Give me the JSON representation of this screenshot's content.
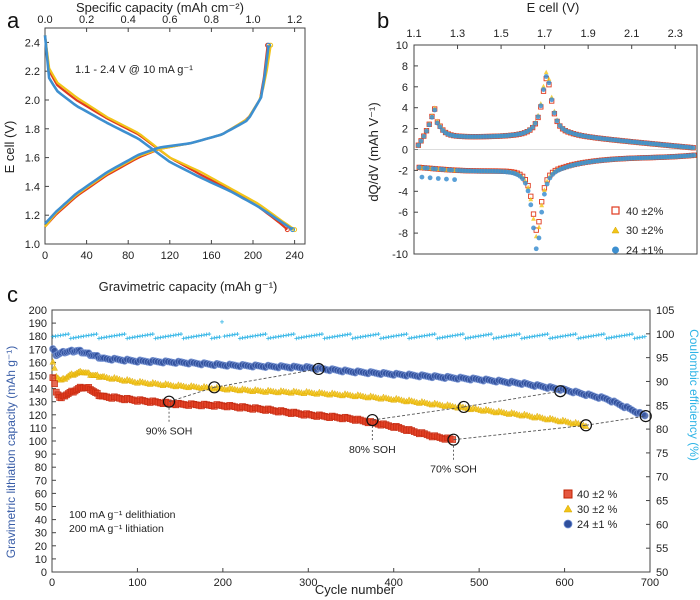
{
  "figure": {
    "panels": [
      {
        "letter": "a",
        "title_top": "Specific capacity (mAh cm⁻²)",
        "xlabel": "Gravimetric capacity (mAh g⁻¹)",
        "ylabel": "E cell (V)",
        "annotation": "1.1 - 2.4 V @ 10 mA g⁻¹"
      },
      {
        "letter": "b",
        "title_top": "E cell (V)",
        "ylabel": "dQ/dV (mAh V⁻¹)",
        "legend": [
          "40 ±2%",
          "30 ±2%",
          "24 ±1%"
        ]
      },
      {
        "letter": "c",
        "xlabel": "Cycle number",
        "ylabel_left": "Gravimetric lithiation capacity (mAh g⁻¹)",
        "ylabel_right": "Coulombic efficiency (%)",
        "notes": [
          "100 mA g⁻¹ delithiation",
          "200 mA g⁻¹ lithiation"
        ],
        "legend": [
          "40 ±2 %",
          "30 ±2 %",
          "24 ±1 %"
        ],
        "soh_labels": [
          "90% SOH",
          "80% SOH",
          "70% SOH"
        ]
      }
    ]
  },
  "chart_data": [
    {
      "type": "line",
      "panel": "a",
      "title": "",
      "xlabel": "Gravimetric capacity (mAh g⁻¹)",
      "ylabel": "E cell (V)",
      "x2label": "Specific capacity (mAh cm⁻²)",
      "xlim": [
        0,
        250
      ],
      "ylim": [
        1.0,
        2.5
      ],
      "x2lim": [
        0,
        1.25
      ],
      "xticks": [
        0,
        40,
        80,
        120,
        160,
        200,
        240
      ],
      "yticks": [
        1.0,
        1.2,
        1.4,
        1.6,
        1.8,
        2.0,
        2.2,
        2.4
      ],
      "x2ticks": [
        0.0,
        0.2,
        0.4,
        0.6,
        0.8,
        1.0,
        1.2
      ],
      "series": [
        {
          "name": "40 ±2%",
          "color": "#e03a1e",
          "lithiation": [
            [
              0,
              2.45
            ],
            [
              4,
              2.2
            ],
            [
              12,
              2.1
            ],
            [
              30,
              2.0
            ],
            [
              60,
              1.87
            ],
            [
              90,
              1.76
            ],
            [
              120,
              1.6
            ],
            [
              150,
              1.48
            ],
            [
              180,
              1.37
            ],
            [
              205,
              1.26
            ],
            [
              225,
              1.15
            ],
            [
              233,
              1.1
            ]
          ],
          "delithiation": [
            [
              0,
              1.12
            ],
            [
              10,
              1.2
            ],
            [
              30,
              1.33
            ],
            [
              60,
              1.48
            ],
            [
              90,
              1.6
            ],
            [
              110,
              1.66
            ],
            [
              140,
              1.7
            ],
            [
              170,
              1.76
            ],
            [
              195,
              1.87
            ],
            [
              208,
              2.02
            ],
            [
              213,
              2.3
            ],
            [
              214,
              2.38
            ]
          ]
        },
        {
          "name": "30 ±2%",
          "color": "#f2c418",
          "lithiation": [
            [
              0,
              2.45
            ],
            [
              4,
              2.22
            ],
            [
              12,
              2.12
            ],
            [
              30,
              2.02
            ],
            [
              60,
              1.88
            ],
            [
              90,
              1.77
            ],
            [
              120,
              1.6
            ],
            [
              150,
              1.5
            ],
            [
              180,
              1.38
            ],
            [
              205,
              1.28
            ],
            [
              228,
              1.16
            ],
            [
              240,
              1.1
            ]
          ],
          "delithiation": [
            [
              0,
              1.12
            ],
            [
              10,
              1.21
            ],
            [
              30,
              1.34
            ],
            [
              60,
              1.49
            ],
            [
              90,
              1.61
            ],
            [
              110,
              1.66
            ],
            [
              140,
              1.7
            ],
            [
              170,
              1.76
            ],
            [
              195,
              1.87
            ],
            [
              208,
              2.02
            ],
            [
              216,
              2.3
            ],
            [
              217,
              2.38
            ]
          ]
        },
        {
          "name": "24 ±1%",
          "color": "#3d8fd0",
          "lithiation": [
            [
              0,
              2.45
            ],
            [
              4,
              2.15
            ],
            [
              12,
              2.06
            ],
            [
              30,
              1.96
            ],
            [
              60,
              1.84
            ],
            [
              90,
              1.73
            ],
            [
              120,
              1.57
            ],
            [
              150,
              1.46
            ],
            [
              180,
              1.36
            ],
            [
              205,
              1.26
            ],
            [
              228,
              1.15
            ],
            [
              238,
              1.1
            ]
          ],
          "delithiation": [
            [
              0,
              1.14
            ],
            [
              10,
              1.22
            ],
            [
              30,
              1.35
            ],
            [
              60,
              1.5
            ],
            [
              90,
              1.62
            ],
            [
              110,
              1.67
            ],
            [
              140,
              1.7
            ],
            [
              170,
              1.76
            ],
            [
              195,
              1.86
            ],
            [
              208,
              2.02
            ],
            [
              214,
              2.3
            ],
            [
              215,
              2.38
            ]
          ]
        }
      ]
    },
    {
      "type": "scatter",
      "panel": "b",
      "title": "",
      "xlabel": "E cell (V)",
      "ylabel": "dQ/dV (mAh V⁻¹)",
      "xlim": [
        1.1,
        2.4
      ],
      "ylim": [
        -10,
        10
      ],
      "xticks": [
        1.1,
        1.3,
        1.5,
        1.7,
        1.9,
        2.1,
        2.3
      ],
      "yticks": [
        -10,
        -8,
        -6,
        -4,
        -2,
        0,
        2,
        4,
        6,
        8,
        10
      ],
      "series": [
        {
          "name": "40 ±2%",
          "color": "#e03a1e",
          "marker": "square",
          "oxidation_peaks": [
            {
              "x": 1.2,
              "y": 2.9
            },
            {
              "x": 1.71,
              "y": 6.8
            }
          ],
          "reduction_peaks": [
            {
              "x": 1.66,
              "y": -7.6
            }
          ]
        },
        {
          "name": "30 ±2%",
          "color": "#f2c418",
          "marker": "triangle",
          "oxidation_peaks": [
            {
              "x": 1.2,
              "y": 3.0
            },
            {
              "x": 1.71,
              "y": 7.4
            }
          ],
          "reduction_peaks": [
            {
              "x": 1.66,
              "y": -8.2
            }
          ]
        },
        {
          "name": "24 ±1%",
          "color": "#3d8fd0",
          "marker": "circle",
          "oxidation_peaks": [
            {
              "x": 1.2,
              "y": 2.8
            },
            {
              "x": 1.71,
              "y": 7.0
            }
          ],
          "reduction_peaks": [
            {
              "x": 1.66,
              "y": -9.4
            }
          ]
        }
      ]
    },
    {
      "type": "scatter",
      "panel": "c",
      "title": "",
      "xlabel": "Cycle number",
      "ylabel": "Gravimetric lithiation capacity (mAh g⁻¹)",
      "y2label": "Coulombic efficiency (%)",
      "xlim": [
        0,
        700
      ],
      "ylim": [
        0,
        200
      ],
      "y2lim": [
        50,
        105
      ],
      "xticks": [
        0,
        100,
        200,
        300,
        400,
        500,
        600,
        700
      ],
      "yticks": [
        0,
        10,
        20,
        30,
        40,
        50,
        60,
        70,
        80,
        90,
        100,
        110,
        120,
        130,
        140,
        150,
        160,
        170,
        180,
        190,
        200
      ],
      "y2ticks": [
        50,
        55,
        60,
        65,
        70,
        75,
        80,
        85,
        90,
        95,
        100,
        105
      ],
      "series": [
        {
          "name": "40 ±2 %",
          "color": "#e03a1e",
          "marker": "square",
          "points": [
            [
              1,
              148
            ],
            [
              5,
              138
            ],
            [
              10,
              132
            ],
            [
              15,
              135
            ],
            [
              25,
              138
            ],
            [
              35,
              141
            ],
            [
              45,
              140
            ],
            [
              52,
              136
            ],
            [
              60,
              134
            ],
            [
              100,
              131
            ],
            [
              150,
              128
            ],
            [
              200,
              127
            ],
            [
              250,
              124
            ],
            [
              300,
              120
            ],
            [
              350,
              117
            ],
            [
              400,
              111
            ],
            [
              450,
              103
            ],
            [
              470,
              101
            ]
          ]
        },
        {
          "name": "30 ±2 %",
          "color": "#f2c418",
          "marker": "triangle",
          "points": [
            [
              1,
              160
            ],
            [
              5,
              150
            ],
            [
              10,
              146
            ],
            [
              20,
              150
            ],
            [
              35,
              153
            ],
            [
              50,
              150
            ],
            [
              100,
              145
            ],
            [
              150,
              142
            ],
            [
              200,
              140
            ],
            [
              250,
              138
            ],
            [
              300,
              137
            ],
            [
              350,
              135
            ],
            [
              400,
              132
            ],
            [
              450,
              128
            ],
            [
              500,
              124
            ],
            [
              550,
              120
            ],
            [
              600,
              115
            ],
            [
              625,
              112
            ]
          ]
        },
        {
          "name": "24 ±1 %",
          "color": "#2f4f9c",
          "marker": "circle",
          "points": [
            [
              1,
              170
            ],
            [
              5,
              166
            ],
            [
              15,
              168
            ],
            [
              30,
              169
            ],
            [
              45,
              166
            ],
            [
              60,
              163
            ],
            [
              100,
              161
            ],
            [
              150,
              160
            ],
            [
              200,
              158
            ],
            [
              250,
              157
            ],
            [
              300,
              156
            ],
            [
              350,
              153
            ],
            [
              400,
              151
            ],
            [
              450,
              149
            ],
            [
              500,
              147
            ],
            [
              550,
              144
            ],
            [
              600,
              139
            ],
            [
              650,
              132
            ],
            [
              695,
              119
            ]
          ]
        },
        {
          "name": "Coulombic efficiency",
          "color": "#2fb4e6",
          "marker": "plus",
          "axis": "right",
          "value": 99.5
        }
      ],
      "soh_markers": [
        {
          "series": "40 ±2 %",
          "cycle": 137,
          "capacity": 130,
          "label": "90% SOH"
        },
        {
          "series": "40 ±2 %",
          "cycle": 375,
          "capacity": 116,
          "label": "80% SOH"
        },
        {
          "series": "40 ±2 %",
          "cycle": 470,
          "capacity": 101,
          "label": "70% SOH"
        },
        {
          "series": "30 ±2 %",
          "cycle": 190,
          "capacity": 141,
          "label": "90% SOH"
        },
        {
          "series": "30 ±2 %",
          "cycle": 482,
          "capacity": 126,
          "label": "80% SOH"
        },
        {
          "series": "30 ±2 %",
          "cycle": 625,
          "capacity": 112,
          "label": "70% SOH"
        },
        {
          "series": "24 ±1 %",
          "cycle": 312,
          "capacity": 155,
          "label": "90% SOH"
        },
        {
          "series": "24 ±1 %",
          "cycle": 595,
          "capacity": 138,
          "label": "80% SOH"
        },
        {
          "series": "24 ±1 %",
          "cycle": 695,
          "capacity": 119,
          "label": "70% SOH"
        }
      ]
    }
  ]
}
